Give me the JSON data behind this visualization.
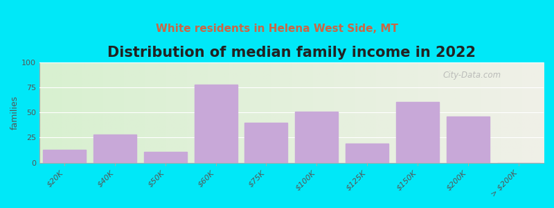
{
  "title": "Distribution of median family income in 2022",
  "subtitle": "White residents in Helena West Side, MT",
  "ylabel": "families",
  "categories": [
    "$20K",
    "$40K",
    "$50K",
    "$60K",
    "$75K",
    "$100K",
    "$125K",
    "$150K",
    "$200K",
    "> $200K"
  ],
  "values": [
    13,
    28,
    11,
    78,
    40,
    51,
    19,
    61,
    46,
    0
  ],
  "bar_color": "#c8a8d8",
  "background_outer": "#00e8f8",
  "background_inner_left": "#d8f0d0",
  "background_inner_right": "#f0f0e8",
  "ylim": [
    0,
    100
  ],
  "yticks": [
    0,
    25,
    50,
    75,
    100
  ],
  "title_fontsize": 15,
  "subtitle_fontsize": 11,
  "ylabel_fontsize": 9,
  "watermark": "City-Data.com"
}
